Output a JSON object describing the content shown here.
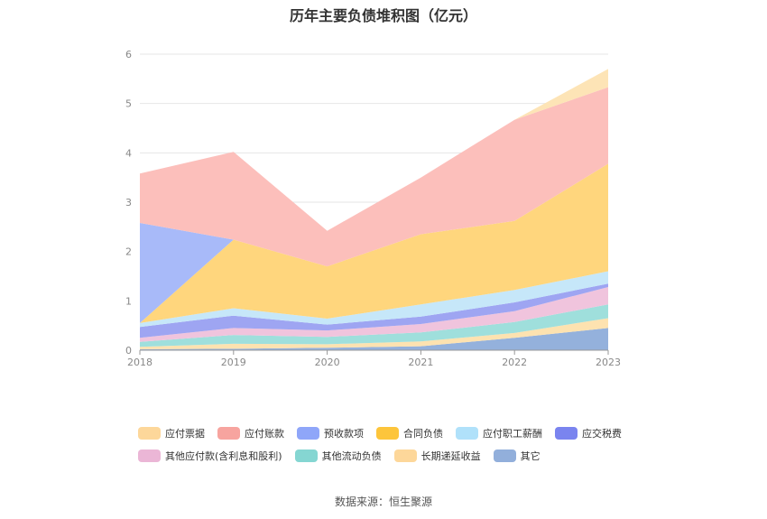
{
  "title": "历年主要负债堆积图（亿元）",
  "source": "数据来源：恒生聚源",
  "chart_data": {
    "type": "area",
    "stacked": true,
    "title": "历年主要负债堆积图（亿元）",
    "categories": [
      "2018",
      "2019",
      "2020",
      "2021",
      "2022",
      "2023"
    ],
    "ylim": [
      0,
      6
    ],
    "yticks": [
      "0",
      "1",
      "2",
      "3",
      "4",
      "5",
      "6"
    ],
    "grid": true,
    "legend_position": "bottom",
    "series": [
      {
        "name": "其它",
        "color": "#94b1dc",
        "values": [
          0.02,
          0.03,
          0.05,
          0.08,
          0.25,
          0.45
        ]
      },
      {
        "name": "长期递延收益",
        "color": "#fde2b0",
        "values": [
          0.05,
          0.1,
          0.07,
          0.1,
          0.1,
          0.2
        ]
      },
      {
        "name": "其他流动负债",
        "color": "#9fdfdc",
        "values": [
          0.1,
          0.18,
          0.15,
          0.18,
          0.22,
          0.28
        ]
      },
      {
        "name": "其他应付款(含利息和股利)",
        "color": "#f0c4dd",
        "values": [
          0.08,
          0.14,
          0.13,
          0.17,
          0.22,
          0.35
        ]
      },
      {
        "name": "应交税费",
        "color": "#9ea5f2",
        "values": [
          0.22,
          0.25,
          0.12,
          0.15,
          0.18,
          0.07
        ]
      },
      {
        "name": "应付职工薪酬",
        "color": "#c6e7f9",
        "values": [
          0.08,
          0.15,
          0.12,
          0.25,
          0.25,
          0.25
        ]
      },
      {
        "name": "合同负债",
        "color": "#ffd67d",
        "values": [
          0.0,
          1.39,
          1.06,
          1.42,
          1.4,
          2.18
        ]
      },
      {
        "name": "预收款项",
        "color": "#a8baf9",
        "values": [
          2.03,
          0.0,
          0.0,
          0.0,
          0.0,
          0.0
        ]
      },
      {
        "name": "应付账款",
        "color": "#fcbfbb",
        "values": [
          1.0,
          1.78,
          0.72,
          1.15,
          2.05,
          1.55
        ]
      },
      {
        "name": "应付票据",
        "color": "#fde4b6",
        "values": [
          0.0,
          0.0,
          0.0,
          0.0,
          0.0,
          0.37
        ]
      }
    ],
    "legend_order": [
      "应付票据",
      "应付账款",
      "预收款项",
      "合同负债",
      "应付职工薪酬",
      "应交税费",
      "其他应付款(含利息和股利)",
      "其他流动负债",
      "长期递延收益",
      "其它"
    ],
    "legend_colors": {
      "应付票据": "#fdd79a",
      "应付账款": "#f7a49f",
      "预收款项": "#8fa6f9",
      "合同负债": "#fdc53b",
      "应付职工薪酬": "#b0e1fa",
      "应交税费": "#7a84ef",
      "其他应付款(含利息和股利)": "#ebb6d6",
      "其他流动负债": "#85d6d2",
      "长期递延收益": "#fdd79a",
      "其它": "#92afdb"
    }
  }
}
